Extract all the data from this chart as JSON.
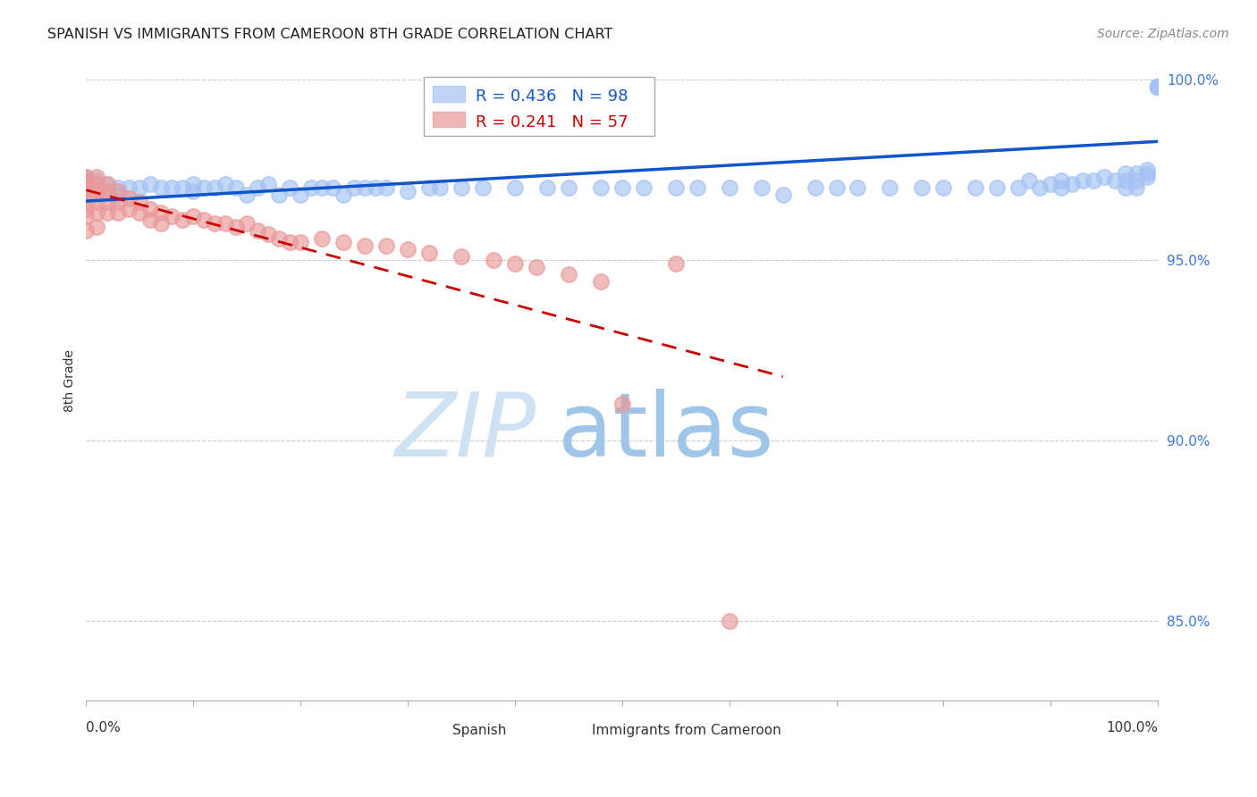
{
  "title": "SPANISH VS IMMIGRANTS FROM CAMEROON 8TH GRADE CORRELATION CHART",
  "source": "Source: ZipAtlas.com",
  "ylabel": "8th Grade",
  "xlim": [
    0.0,
    1.0
  ],
  "ylim": [
    0.828,
    1.005
  ],
  "yticks": [
    0.85,
    0.9,
    0.95,
    1.0
  ],
  "ytick_labels": [
    "85.0%",
    "90.0%",
    "95.0%",
    "100.0%"
  ],
  "xticks": [
    0.0,
    0.1,
    0.2,
    0.3,
    0.4,
    0.5,
    0.6,
    0.7,
    0.8,
    0.9,
    1.0
  ],
  "blue_R": 0.436,
  "blue_N": 98,
  "pink_R": 0.241,
  "pink_N": 57,
  "blue_color": "#a4c2f4",
  "pink_color": "#ea9999",
  "trendline_blue": "#1155cc",
  "trendline_pink": "#cc0000",
  "legend_blue_text_color": "#1155cc",
  "legend_pink_text_color": "#cc0000",
  "blue_scatter_x": [
    0.0,
    0.0,
    0.0,
    0.01,
    0.01,
    0.01,
    0.02,
    0.02,
    0.03,
    0.03,
    0.04,
    0.05,
    0.06,
    0.07,
    0.08,
    0.09,
    0.1,
    0.1,
    0.11,
    0.12,
    0.13,
    0.14,
    0.15,
    0.16,
    0.17,
    0.18,
    0.19,
    0.2,
    0.21,
    0.22,
    0.23,
    0.24,
    0.25,
    0.26,
    0.27,
    0.28,
    0.3,
    0.32,
    0.33,
    0.35,
    0.37,
    0.4,
    0.43,
    0.45,
    0.48,
    0.5,
    0.52,
    0.55,
    0.57,
    0.6,
    0.63,
    0.65,
    0.68,
    0.7,
    0.72,
    0.75,
    0.78,
    0.8,
    0.83,
    0.85,
    0.87,
    0.88,
    0.89,
    0.9,
    0.91,
    0.91,
    0.92,
    0.93,
    0.94,
    0.95,
    0.96,
    0.97,
    0.97,
    0.97,
    0.98,
    0.98,
    0.98,
    0.99,
    0.99,
    0.99,
    1.0,
    1.0,
    1.0,
    1.0,
    1.0,
    1.0,
    1.0,
    1.0,
    1.0,
    1.0,
    1.0,
    1.0,
    1.0,
    1.0,
    1.0,
    1.0,
    1.0,
    1.0
  ],
  "blue_scatter_y": [
    0.973,
    0.971,
    0.969,
    0.972,
    0.97,
    0.968,
    0.971,
    0.969,
    0.97,
    0.968,
    0.97,
    0.97,
    0.971,
    0.97,
    0.97,
    0.97,
    0.971,
    0.969,
    0.97,
    0.97,
    0.971,
    0.97,
    0.968,
    0.97,
    0.971,
    0.968,
    0.97,
    0.968,
    0.97,
    0.97,
    0.97,
    0.968,
    0.97,
    0.97,
    0.97,
    0.97,
    0.969,
    0.97,
    0.97,
    0.97,
    0.97,
    0.97,
    0.97,
    0.97,
    0.97,
    0.97,
    0.97,
    0.97,
    0.97,
    0.97,
    0.97,
    0.968,
    0.97,
    0.97,
    0.97,
    0.97,
    0.97,
    0.97,
    0.97,
    0.97,
    0.97,
    0.972,
    0.97,
    0.971,
    0.972,
    0.97,
    0.971,
    0.972,
    0.972,
    0.973,
    0.972,
    0.974,
    0.972,
    0.97,
    0.974,
    0.972,
    0.97,
    0.974,
    0.973,
    0.975,
    0.998,
    0.998,
    0.998,
    0.998,
    0.998,
    0.998,
    0.998,
    0.998,
    0.998,
    0.998,
    0.998,
    0.998,
    0.998,
    0.998,
    0.998,
    0.998,
    0.998,
    0.998
  ],
  "pink_scatter_x": [
    0.0,
    0.0,
    0.0,
    0.0,
    0.0,
    0.0,
    0.0,
    0.0,
    0.01,
    0.01,
    0.01,
    0.01,
    0.01,
    0.01,
    0.02,
    0.02,
    0.02,
    0.02,
    0.03,
    0.03,
    0.03,
    0.04,
    0.04,
    0.05,
    0.05,
    0.06,
    0.06,
    0.07,
    0.07,
    0.08,
    0.09,
    0.1,
    0.11,
    0.12,
    0.13,
    0.14,
    0.15,
    0.16,
    0.17,
    0.18,
    0.19,
    0.2,
    0.22,
    0.24,
    0.26,
    0.28,
    0.3,
    0.32,
    0.35,
    0.38,
    0.4,
    0.42,
    0.45,
    0.48,
    0.5,
    0.55,
    0.6
  ],
  "pink_scatter_y": [
    0.973,
    0.972,
    0.97,
    0.968,
    0.966,
    0.964,
    0.962,
    0.958,
    0.973,
    0.971,
    0.969,
    0.966,
    0.963,
    0.959,
    0.971,
    0.969,
    0.966,
    0.963,
    0.969,
    0.966,
    0.963,
    0.967,
    0.964,
    0.966,
    0.963,
    0.964,
    0.961,
    0.963,
    0.96,
    0.962,
    0.961,
    0.962,
    0.961,
    0.96,
    0.96,
    0.959,
    0.96,
    0.958,
    0.957,
    0.956,
    0.955,
    0.955,
    0.956,
    0.955,
    0.954,
    0.954,
    0.953,
    0.952,
    0.951,
    0.95,
    0.949,
    0.948,
    0.946,
    0.944,
    0.91,
    0.949,
    0.85
  ]
}
